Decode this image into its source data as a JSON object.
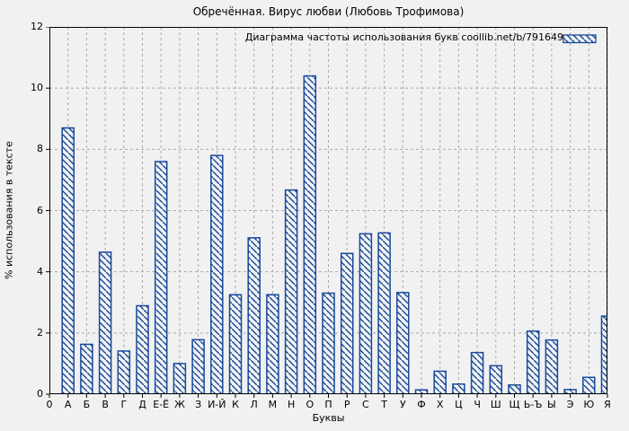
{
  "chart_data": {
    "type": "bar",
    "title": "Обречённая. Вирус любви (Любовь Трофимова)",
    "legend_label": "Диаграмма частоты использования букв coollib.net/b/791649",
    "legend_position": "top-right",
    "xlabel": "Буквы",
    "ylabel": "% использования в тексте",
    "x_origin_label": "0",
    "categories": [
      "А",
      "Б",
      "В",
      "Г",
      "Д",
      "Е-Ё",
      "Ж",
      "З",
      "И-Й",
      "К",
      "Л",
      "М",
      "Н",
      "О",
      "П",
      "Р",
      "С",
      "Т",
      "У",
      "Ф",
      "Х",
      "Ц",
      "Ч",
      "Ш",
      "Щ",
      "Ь-Ъ",
      "Ы",
      "Э",
      "Ю",
      "Я"
    ],
    "values": [
      8.7,
      1.63,
      4.64,
      1.41,
      2.89,
      7.6,
      1.0,
      1.78,
      7.8,
      3.25,
      5.11,
      3.25,
      6.67,
      10.4,
      3.3,
      4.6,
      5.24,
      5.27,
      3.32,
      0.14,
      0.75,
      0.33,
      1.36,
      0.93,
      0.3,
      2.06,
      1.77,
      0.15,
      0.55,
      2.55
    ],
    "ylim": [
      0,
      12
    ],
    "yticks": [
      0,
      2,
      4,
      6,
      8,
      10,
      12
    ],
    "grid": true,
    "hatch": "diagonal-backslash",
    "bar_color": "#16489c",
    "bar_fill": "#f3f3f3",
    "grid_color": "#aaaaaa",
    "border_color": "#000000",
    "background": "#f1f1f1"
  }
}
